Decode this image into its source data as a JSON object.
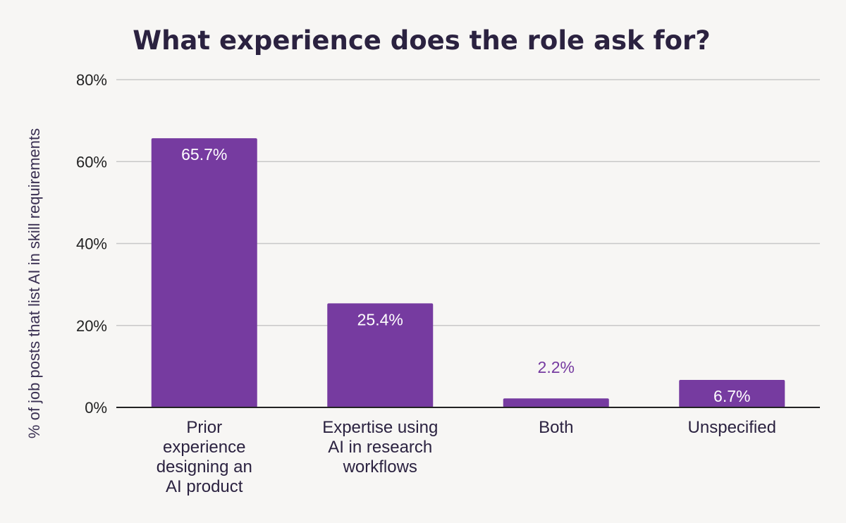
{
  "chart_data": {
    "type": "bar",
    "title": "What experience does the role ask for?",
    "xlabel": "",
    "ylabel": "% of job posts that list AI in skill requirements",
    "categories": [
      [
        "Prior",
        "experience",
        "designing an",
        "AI product"
      ],
      [
        "Expertise using",
        "AI in research",
        "workflows"
      ],
      [
        "Both"
      ],
      [
        "Unspecified"
      ]
    ],
    "values": [
      65.7,
      25.4,
      2.2,
      6.7
    ],
    "value_labels": [
      "65.7%",
      "25.4%",
      "2.2%",
      "6.7%"
    ],
    "ylim": [
      0,
      80
    ],
    "yticks": [
      0,
      20,
      40,
      60,
      80
    ],
    "ytick_labels": [
      "0%",
      "20%",
      "40%",
      "60%",
      "80%"
    ],
    "grid": true,
    "legend": "none",
    "colors": {
      "bar": "#763ba0",
      "label_inside": "#ffffff",
      "label_outside": "#763ba0",
      "grid": "#c8c8c8",
      "axis": "#222222",
      "background": "#f7f6f4"
    }
  }
}
